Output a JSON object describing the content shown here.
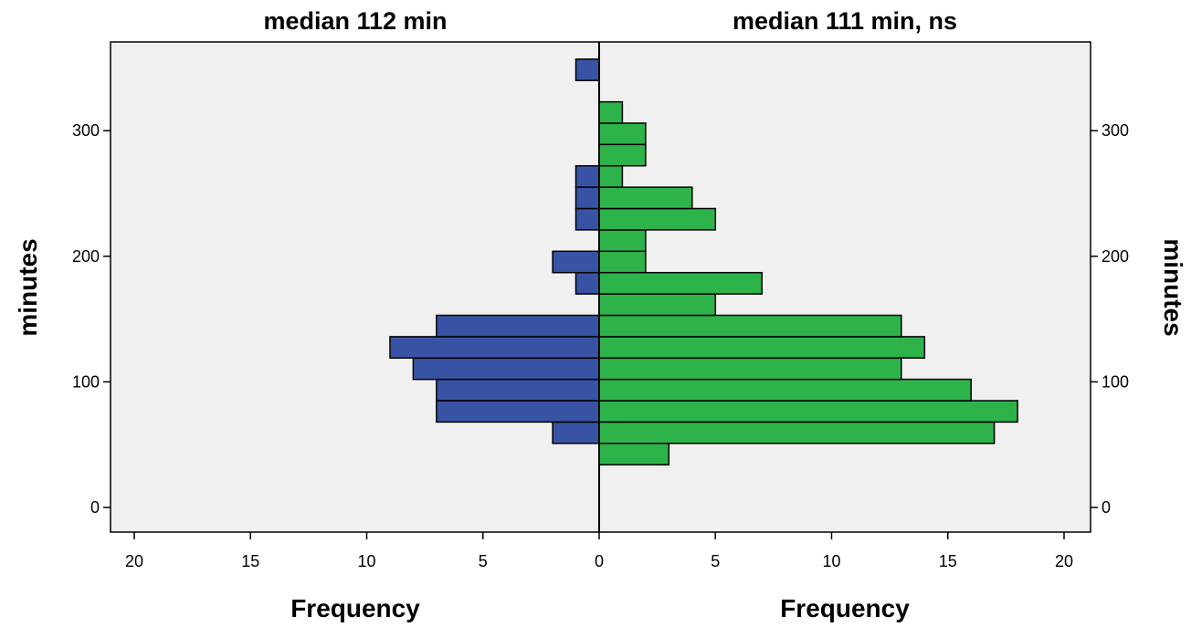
{
  "chart_data": {
    "type": "bar",
    "orientation": "horizontal",
    "layout": "back-to-back histogram",
    "left_panel": {
      "title": "median 112 min",
      "xlabel": "Frequency",
      "ylabel": "minutes",
      "color": "#3953a4",
      "xlim": [
        20,
        0
      ],
      "xticks": [
        "20",
        "15",
        "10",
        "5",
        "0"
      ]
    },
    "right_panel": {
      "title": "median 111 min, ns",
      "xlabel": "Frequency",
      "ylabel": "minutes",
      "color": "#2db34a",
      "xlim": [
        0,
        20
      ],
      "xticks": [
        "0",
        "5",
        "10",
        "15",
        "20"
      ]
    },
    "ylim": [
      -20,
      375
    ],
    "yticks": [
      "0",
      "100",
      "200",
      "300"
    ],
    "bin_width": 17,
    "series": [
      {
        "panel": "left",
        "bins": [
          {
            "y0": 51,
            "y1": 68,
            "value": 2
          },
          {
            "y0": 68,
            "y1": 85,
            "value": 7
          },
          {
            "y0": 85,
            "y1": 102,
            "value": 7
          },
          {
            "y0": 102,
            "y1": 119,
            "value": 8
          },
          {
            "y0": 119,
            "y1": 136,
            "value": 9
          },
          {
            "y0": 136,
            "y1": 153,
            "value": 7
          },
          {
            "y0": 170,
            "y1": 187,
            "value": 1
          },
          {
            "y0": 187,
            "y1": 204,
            "value": 2
          },
          {
            "y0": 221,
            "y1": 238,
            "value": 1
          },
          {
            "y0": 238,
            "y1": 255,
            "value": 1
          },
          {
            "y0": 255,
            "y1": 272,
            "value": 1
          },
          {
            "y0": 340,
            "y1": 357,
            "value": 1
          }
        ]
      },
      {
        "panel": "right",
        "bins": [
          {
            "y0": 34,
            "y1": 51,
            "value": 3
          },
          {
            "y0": 51,
            "y1": 68,
            "value": 17
          },
          {
            "y0": 68,
            "y1": 85,
            "value": 18
          },
          {
            "y0": 85,
            "y1": 102,
            "value": 16
          },
          {
            "y0": 102,
            "y1": 119,
            "value": 13
          },
          {
            "y0": 119,
            "y1": 136,
            "value": 14
          },
          {
            "y0": 136,
            "y1": 153,
            "value": 13
          },
          {
            "y0": 153,
            "y1": 170,
            "value": 5
          },
          {
            "y0": 170,
            "y1": 187,
            "value": 7
          },
          {
            "y0": 187,
            "y1": 204,
            "value": 2
          },
          {
            "y0": 204,
            "y1": 221,
            "value": 2
          },
          {
            "y0": 221,
            "y1": 238,
            "value": 5
          },
          {
            "y0": 238,
            "y1": 255,
            "value": 4
          },
          {
            "y0": 255,
            "y1": 272,
            "value": 1
          },
          {
            "y0": 272,
            "y1": 289,
            "value": 2
          },
          {
            "y0": 289,
            "y1": 306,
            "value": 2
          },
          {
            "y0": 306,
            "y1": 323,
            "value": 1
          }
        ]
      }
    ],
    "grid": false,
    "background_color": "#f0f0f0"
  }
}
